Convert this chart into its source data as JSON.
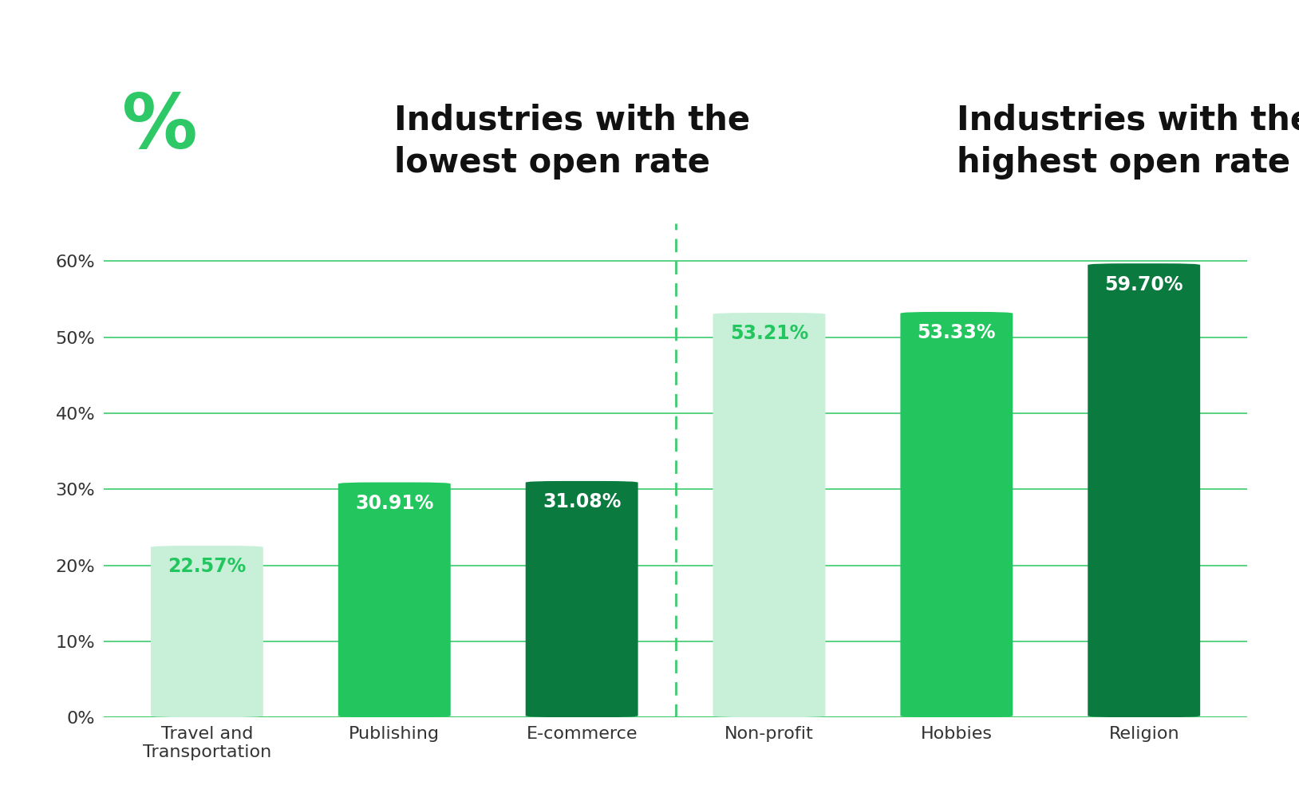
{
  "categories": [
    "Travel and\nTransportation",
    "Publishing",
    "E-commerce",
    "Non-profit",
    "Hobbies",
    "Religion"
  ],
  "values": [
    22.57,
    30.91,
    31.08,
    53.21,
    53.33,
    59.7
  ],
  "bar_colors": [
    "#c8f0d8",
    "#22c55e",
    "#0a7a3e",
    "#c8f0d8",
    "#22c55e",
    "#0a7a3e"
  ],
  "label_colors": [
    "#22c55e",
    "#ffffff",
    "#ffffff",
    "#22c55e",
    "#ffffff",
    "#ffffff"
  ],
  "labels": [
    "22.57%",
    "30.91%",
    "31.08%",
    "53.21%",
    "53.33%",
    "59.70%"
  ],
  "title_left": "Industries with the\nlowest open rate",
  "title_right": "Industries with the\nhighest open rate",
  "title_fontsize": 30,
  "ylabel_ticks": [
    "0%",
    "10%",
    "20%",
    "30%",
    "40%",
    "50%",
    "60%"
  ],
  "ytick_values": [
    0,
    10,
    20,
    30,
    40,
    50,
    60
  ],
  "ylim": [
    0,
    65
  ],
  "divider_x": 2.5,
  "background_color": "#ffffff",
  "grid_color": "#3dcb6e",
  "axis_color": "#333333",
  "percent_icon_color": "#2ec866",
  "bar_width": 0.6,
  "xlim_left": -0.55,
  "xlim_right": 5.55,
  "label_fontsize": 17,
  "tick_fontsize": 16
}
